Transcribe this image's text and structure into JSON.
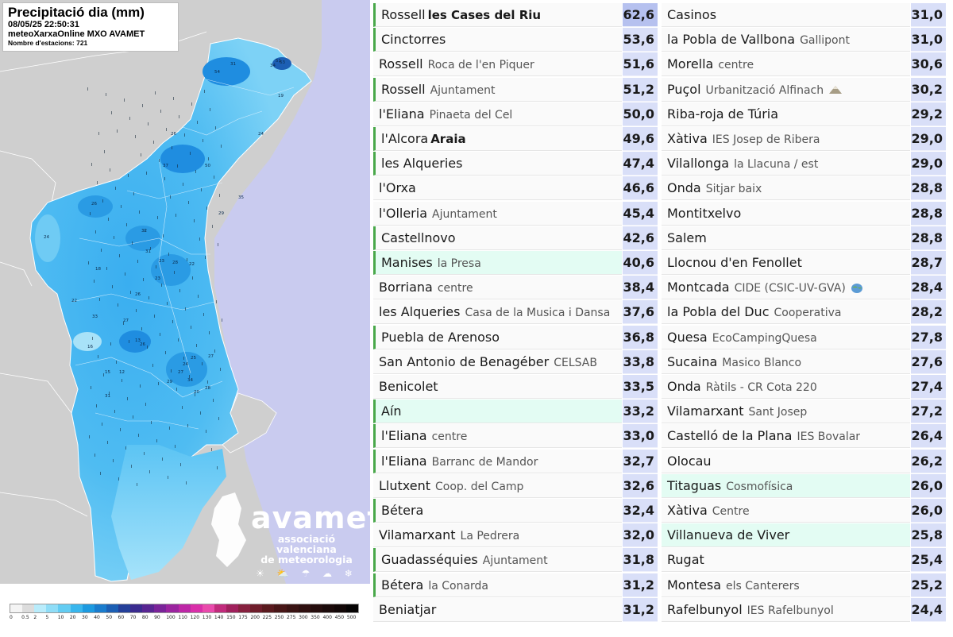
{
  "map": {
    "title": "Precipitació dia (mm)",
    "datetime": "08/05/25 22:50:31",
    "source": "meteoXarxaOnline MXO AVAMET",
    "stations": "Nombre d'estacions: 721",
    "logo": {
      "name": "avamet",
      "subtitle_1": "associació valenciana",
      "subtitle_2": "de meteorologia",
      "icons": "☀ ⛅ ☂ ☁ ❄"
    },
    "legend": {
      "labels": [
        "0",
        "0.5",
        "2",
        "5",
        "10",
        "20",
        "30",
        "40",
        "50",
        "60",
        "70",
        "80",
        "90",
        "100",
        "110",
        "120",
        "130",
        "140",
        "150",
        "175",
        "200",
        "225",
        "250",
        "275",
        "300",
        "350",
        "400",
        "450",
        "500"
      ],
      "colors": [
        "#f4f4f4",
        "#dcdcdc",
        "#b9ecfb",
        "#8fddf7",
        "#63ccf2",
        "#38b6ed",
        "#1d9ae0",
        "#1a7ccd",
        "#1c5fb4",
        "#243f99",
        "#3a2b8f",
        "#582592",
        "#7a2399",
        "#9b249f",
        "#bd27a6",
        "#d92ea9",
        "#e94aac",
        "#c12b7c",
        "#a0205c",
        "#86203e",
        "#6f1d2b",
        "#5a1a1e",
        "#481617",
        "#3a1313",
        "#2f1010",
        "#250d0d",
        "#1b0a0a",
        "#120707",
        "#050303"
      ]
    },
    "station_values": [
      "54",
      "31",
      "34",
      "63",
      "51",
      "37",
      "50",
      "26",
      "24",
      "32",
      "23",
      "28",
      "26",
      "31",
      "23",
      "18",
      "22",
      "25",
      "24",
      "27",
      "29",
      "12",
      "13",
      "26",
      "16",
      "28",
      "27",
      "34",
      "20",
      "31",
      "33",
      "22",
      "15",
      "27",
      "29",
      "35",
      "24",
      "19",
      "26"
    ]
  },
  "ranking_left": [
    {
      "name": "Rossell",
      "sub": "les Cases del Riu",
      "sub_style": "strong",
      "value": "62,6",
      "top": true,
      "bar": true,
      "hl": false
    },
    {
      "name": "Cinctorres",
      "sub": "",
      "value": "53,6",
      "bar": true,
      "hl": false
    },
    {
      "name": "Rossell",
      "sub": "Roca de l'en Piquer",
      "value": "51,6",
      "bar": false,
      "hl": false
    },
    {
      "name": "Rossell",
      "sub": "Ajuntament",
      "value": "51,2",
      "bar": true,
      "hl": false
    },
    {
      "name": "l'Eliana",
      "sub": "Pinaeta del Cel",
      "value": "50,0",
      "bar": false,
      "hl": false
    },
    {
      "name": "l'Alcora",
      "sub": "Araia",
      "sub_style": "strong",
      "value": "49,6",
      "bar": true,
      "hl": false
    },
    {
      "name": "les Alqueries",
      "sub": "",
      "value": "47,4",
      "bar": true,
      "hl": false
    },
    {
      "name": "l'Orxa",
      "sub": "",
      "value": "46,6",
      "bar": false,
      "hl": false
    },
    {
      "name": "l'Olleria",
      "sub": "Ajuntament",
      "value": "45,4",
      "bar": false,
      "hl": false
    },
    {
      "name": "Castellnovo",
      "sub": "",
      "value": "42,6",
      "bar": true,
      "hl": false
    },
    {
      "name": "Manises",
      "sub": "la Presa",
      "value": "40,6",
      "bar": true,
      "hl": true
    },
    {
      "name": "Borriana",
      "sub": "centre",
      "value": "38,4",
      "bar": false,
      "hl": false
    },
    {
      "name": "les Alqueries",
      "sub": "Casa de la Musica i Dansa",
      "value": "37,6",
      "bar": false,
      "hl": false
    },
    {
      "name": "Puebla de Arenoso",
      "sub": "",
      "value": "36,8",
      "bar": true,
      "hl": false
    },
    {
      "name": "San Antonio de Benagéber",
      "sub": "CELSAB",
      "value": "33,8",
      "bar": false,
      "hl": false
    },
    {
      "name": "Benicolet",
      "sub": "",
      "value": "33,5",
      "bar": false,
      "hl": false
    },
    {
      "name": "Aín",
      "sub": "",
      "value": "33,2",
      "bar": true,
      "hl": true
    },
    {
      "name": "l'Eliana",
      "sub": "centre",
      "value": "33,0",
      "bar": true,
      "hl": false
    },
    {
      "name": "l'Eliana",
      "sub": "Barranc de Mandor",
      "value": "32,7",
      "bar": true,
      "hl": false
    },
    {
      "name": "Llutxent",
      "sub": "Coop. del Camp",
      "value": "32,6",
      "bar": false,
      "hl": false
    },
    {
      "name": "Bétera",
      "sub": "",
      "value": "32,4",
      "bar": true,
      "hl": false
    },
    {
      "name": "Vilamarxant",
      "sub": "La Pedrera",
      "value": "32,0",
      "bar": false,
      "hl": false
    },
    {
      "name": "Guadasséquies",
      "sub": "Ajuntament",
      "value": "31,8",
      "bar": true,
      "hl": false
    },
    {
      "name": "Bétera",
      "sub": "la Conarda",
      "value": "31,2",
      "bar": true,
      "hl": false
    },
    {
      "name": "Beniatjar",
      "sub": "",
      "value": "31,2",
      "bar": false,
      "hl": false
    }
  ],
  "ranking_right": [
    {
      "name": "Casinos",
      "sub": "",
      "value": "31,0",
      "bar": false,
      "hl": false
    },
    {
      "name": "la Pobla de Vallbona",
      "sub": "Gallipont",
      "value": "31,0",
      "bar": false,
      "hl": false
    },
    {
      "name": "Morella",
      "sub": "centre",
      "value": "30,6",
      "bar": false,
      "hl": false
    },
    {
      "name": "Puçol",
      "sub": "Urbanització Alfinach",
      "value": "30,2",
      "bar": false,
      "hl": false,
      "icon": "mountain-icon"
    },
    {
      "name": "Riba-roja de Túria",
      "sub": "",
      "value": "29,2",
      "bar": false,
      "hl": false
    },
    {
      "name": "Xàtiva",
      "sub": "IES Josep de Ribera",
      "value": "29,0",
      "bar": false,
      "hl": false
    },
    {
      "name": "Vilallonga",
      "sub": "la Llacuna / est",
      "value": "29,0",
      "bar": false,
      "hl": false
    },
    {
      "name": "Onda",
      "sub": "Sitjar baix",
      "value": "28,8",
      "bar": false,
      "hl": false
    },
    {
      "name": "Montitxelvo",
      "sub": "",
      "value": "28,8",
      "bar": false,
      "hl": false
    },
    {
      "name": "Salem",
      "sub": "",
      "value": "28,8",
      "bar": false,
      "hl": false
    },
    {
      "name": "Llocnou d'en Fenollet",
      "sub": "",
      "value": "28,7",
      "bar": false,
      "hl": false
    },
    {
      "name": "Montcada",
      "sub": "CIDE (CSIC-UV-GVA)",
      "value": "28,4",
      "bar": false,
      "hl": false,
      "icon": "globe-icon"
    },
    {
      "name": "la Pobla del Duc",
      "sub": "Cooperativa",
      "value": "28,2",
      "bar": false,
      "hl": false
    },
    {
      "name": "Quesa",
      "sub": "EcoCampingQuesa",
      "value": "27,8",
      "bar": false,
      "hl": false
    },
    {
      "name": "Sucaina",
      "sub": "Masico Blanco",
      "value": "27,6",
      "bar": false,
      "hl": false
    },
    {
      "name": "Onda",
      "sub": "Ràtils - CR Cota 220",
      "value": "27,4",
      "bar": false,
      "hl": false
    },
    {
      "name": "Vilamarxant",
      "sub": "Sant Josep",
      "value": "27,2",
      "bar": false,
      "hl": false
    },
    {
      "name": "Castelló de la Plana",
      "sub": "IES Bovalar",
      "value": "26,4",
      "bar": false,
      "hl": false
    },
    {
      "name": "Olocau",
      "sub": "",
      "value": "26,2",
      "bar": false,
      "hl": false
    },
    {
      "name": "Titaguas",
      "sub": "Cosmofísica",
      "value": "26,0",
      "bar": false,
      "hl": true
    },
    {
      "name": "Xàtiva",
      "sub": "Centre",
      "value": "26,0",
      "bar": false,
      "hl": false
    },
    {
      "name": "Villanueva de Viver",
      "sub": "",
      "value": "25,8",
      "bar": false,
      "hl": true
    },
    {
      "name": "Rugat",
      "sub": "",
      "value": "25,4",
      "bar": false,
      "hl": false
    },
    {
      "name": "Montesa",
      "sub": "els Canterers",
      "value": "25,2",
      "bar": false,
      "hl": false
    },
    {
      "name": "Rafelbunyol",
      "sub": "IES Rafelbunyol",
      "value": "24,4",
      "bar": false,
      "hl": false
    }
  ]
}
